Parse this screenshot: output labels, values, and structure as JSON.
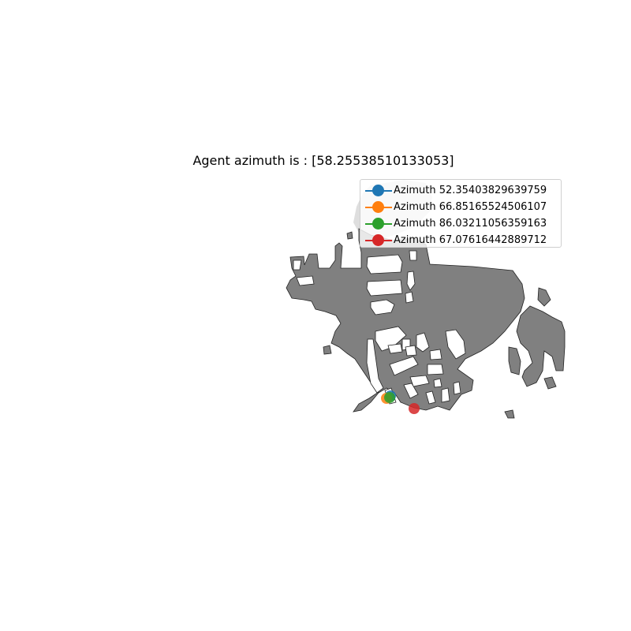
{
  "title": "Agent azimuth is : [58.25538510133053]",
  "colors": {
    "walkable": "#808080",
    "outline": "#222222",
    "explored": "#dedede"
  },
  "legend": {
    "items": [
      {
        "label": "Azimuth 52.35403829639759",
        "color": "#1f77b4"
      },
      {
        "label": "Azimuth 66.85165524506107",
        "color": "#ff7f0e"
      },
      {
        "label": "Azimuth 86.03211056359163",
        "color": "#2ca02c"
      },
      {
        "label": "Azimuth 67.07616442889712",
        "color": "#d62728"
      }
    ]
  }
}
